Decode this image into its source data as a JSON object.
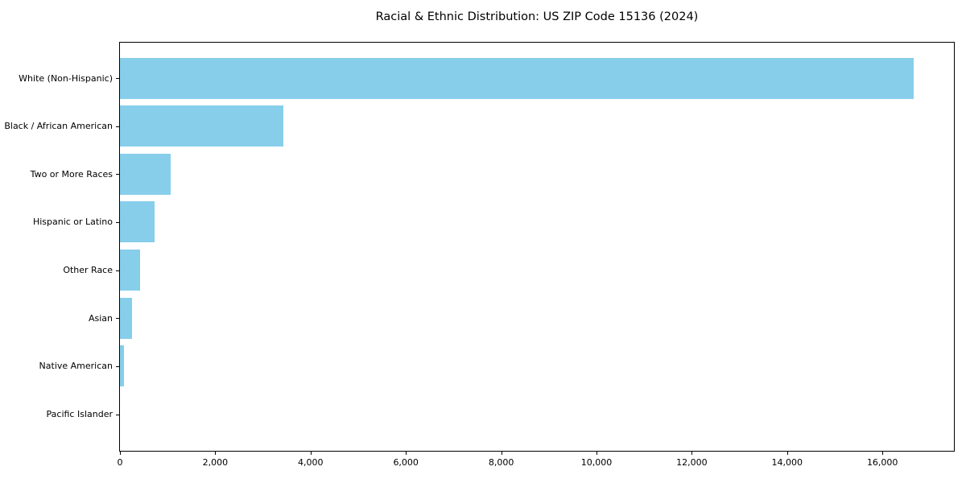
{
  "chart_data": {
    "type": "bar",
    "orientation": "horizontal",
    "title": "Racial & Ethnic Distribution: US ZIP Code 15136 (2024)",
    "categories": [
      "White (Non-Hispanic)",
      "Black / African American",
      "Two or More Races",
      "Hispanic or Latino",
      "Other Race",
      "Asian",
      "Native American",
      "Pacific Islander"
    ],
    "values": [
      16650,
      3430,
      1060,
      730,
      420,
      260,
      85,
      0
    ],
    "xlabel": "",
    "ylabel": "",
    "xlim": [
      0,
      17500
    ],
    "x_ticks": [
      0,
      2000,
      4000,
      6000,
      8000,
      10000,
      12000,
      14000,
      16000
    ],
    "x_tick_labels": [
      "0",
      "2,000",
      "4,000",
      "6,000",
      "8,000",
      "10,000",
      "12,000",
      "14,000",
      "16,000"
    ],
    "grid": false,
    "legend_position": "none",
    "bar_color": "#87CEEB",
    "background_color": "#ffffff",
    "axis_color": "#000000"
  }
}
